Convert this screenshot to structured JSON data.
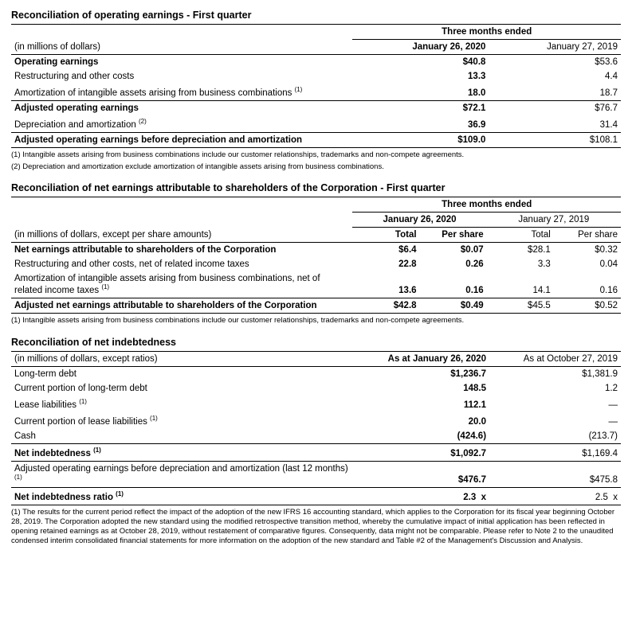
{
  "table1": {
    "title": "Reconciliation of operating earnings - First quarter",
    "period_header": "Three months ended",
    "unit_label": "(in millions of dollars)",
    "col_a": "January 26, 2020",
    "col_b": "January 27, 2019",
    "rows": [
      {
        "label": "Operating earnings",
        "a": "$40.8",
        "b": "$53.6",
        "bold": true
      },
      {
        "label": "Restructuring and other costs",
        "a": "13.3",
        "b": "4.4",
        "bold": false
      },
      {
        "label": "Amortization of intangible assets arising from business combinations ",
        "sup": "(1)",
        "a": "18.0",
        "b": "18.7",
        "bold": false,
        "rule": true
      },
      {
        "label": "Adjusted operating earnings",
        "a": "$72.1",
        "b": "$76.7",
        "bold": true
      },
      {
        "label": "Depreciation and amortization ",
        "sup": "(2)",
        "a": "36.9",
        "b": "31.4",
        "bold": false,
        "rule": true
      },
      {
        "label": "Adjusted operating earnings before depreciation and amortization",
        "a": "$109.0",
        "b": "$108.1",
        "bold": true,
        "rule": true
      }
    ],
    "footnotes": [
      "(1) Intangible assets arising from business combinations include our customer relationships, trademarks and non-compete agreements.",
      "(2) Depreciation and amortization exclude amortization of intangible assets arising from business combinations."
    ]
  },
  "table2": {
    "title": "Reconciliation of net earnings attributable to shareholders of the Corporation - First quarter",
    "period_header": "Three months ended",
    "unit_label": "(in millions of dollars, except per share amounts)",
    "col_a": "January 26, 2020",
    "col_b": "January 27, 2019",
    "sub_total": "Total",
    "sub_per": "Per share",
    "rows": [
      {
        "label": "Net earnings attributable to shareholders of the Corporation",
        "a_t": "$6.4",
        "a_p": "$0.07",
        "b_t": "$28.1",
        "b_p": "$0.32",
        "bold": true
      },
      {
        "label": "Restructuring and other costs, net of related income taxes",
        "a_t": "22.8",
        "a_p": "0.26",
        "b_t": "3.3",
        "b_p": "0.04",
        "bold": false
      },
      {
        "label": "Amortization of intangible assets arising from business combinations, net of related income taxes ",
        "sup": "(1)",
        "a_t": "13.6",
        "a_p": "0.16",
        "b_t": "14.1",
        "b_p": "0.16",
        "bold": false,
        "rule": true
      },
      {
        "label": "Adjusted net earnings attributable to shareholders of the Corporation",
        "a_t": "$42.8",
        "a_p": "$0.49",
        "b_t": "$45.5",
        "b_p": "$0.52",
        "bold": true,
        "rule": true
      }
    ],
    "footnotes": [
      "(1) Intangible assets arising from business combinations include our customer relationships, trademarks and non-compete agreements."
    ]
  },
  "table3": {
    "title": "Reconciliation of net indebtedness",
    "unit_label": "(in millions of dollars, except ratios)",
    "col_a": "As at January 26, 2020",
    "col_b": "As at October 27, 2019",
    "rows": [
      {
        "label": "Long-term debt",
        "a": "$1,236.7",
        "b": "$1,381.9",
        "bold": false
      },
      {
        "label": "Current portion of long-term debt",
        "a": "148.5",
        "b": "1.2",
        "bold": false
      },
      {
        "label": "Lease liabilities ",
        "sup": "(1)",
        "a": "112.1",
        "b": "—",
        "bold": false
      },
      {
        "label": "Current portion of lease liabilities ",
        "sup": "(1)",
        "a": "20.0",
        "b": "—",
        "bold": false
      },
      {
        "label": "Cash",
        "a": "(424.6)",
        "b": "(213.7)",
        "bold": false,
        "rule": true
      },
      {
        "label": "Net indebtedness ",
        "sup": "(1)",
        "a": "$1,092.7",
        "b": "$1,169.4",
        "bold": true,
        "rule": true
      },
      {
        "label": "Adjusted operating earnings before depreciation and amortization (last 12 months) ",
        "sup": "(1)",
        "a": "$476.7",
        "b": "$475.8",
        "bold": false,
        "rule": true
      },
      {
        "label": "Net indebtedness ratio ",
        "sup": "(1)",
        "a": "2.3",
        "a_suffix": "x",
        "b": "2.5",
        "b_suffix": "x",
        "bold": true,
        "rule": true
      }
    ],
    "footnotes": [
      "(1) The results for the current period reflect the impact of the adoption of the new IFRS 16 accounting standard, which applies to the Corporation for its fiscal year beginning October 28, 2019. The Corporation adopted the new standard using the modified retrospective transition method, whereby the cumulative impact of initial application has been reflected in opening retained earnings as at October 28, 2019, without restatement of comparative figures. Consequently, data might not be comparable. Please refer to Note 2 to the unaudited condensed interim consolidated financial statements for more information on the adoption of the new standard and Table #2 of the Management's Discussion and Analysis."
    ]
  }
}
